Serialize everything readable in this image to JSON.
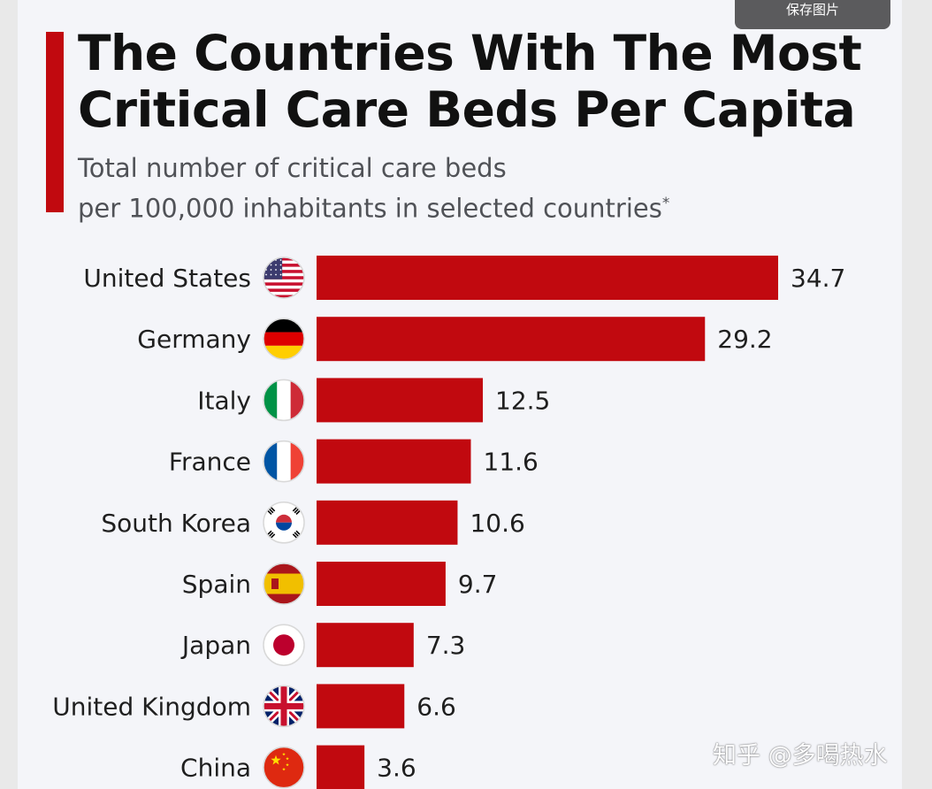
{
  "toolbar": {
    "save_image_label": "保存图片"
  },
  "title": {
    "line1": "The Countries With The Most",
    "line2": "Critical Care Beds Per Capita"
  },
  "subtitle": {
    "line1": "Total number of critical care beds",
    "line2": "per 100,000 inhabitants in selected countries",
    "footnote_marker": "*"
  },
  "colors": {
    "bar": "#c1090f",
    "accent": "#c1090f",
    "label": "#1f1f1f"
  },
  "chart_data": {
    "type": "bar",
    "orientation": "horizontal",
    "categories": [
      "United States",
      "Germany",
      "Italy",
      "France",
      "South Korea",
      "Spain",
      "Japan",
      "United Kingdom",
      "China"
    ],
    "values": [
      34.7,
      29.2,
      12.5,
      11.6,
      10.6,
      9.7,
      7.3,
      6.6,
      3.6
    ],
    "value_labels": [
      "34.7",
      "29.2",
      "12.5",
      "11.6",
      "10.6",
      "9.7",
      "7.3",
      "6.6",
      "3.6"
    ],
    "flags": [
      "us-flag-icon",
      "germany-flag-icon",
      "italy-flag-icon",
      "france-flag-icon",
      "south-korea-flag-icon",
      "spain-flag-icon",
      "japan-flag-icon",
      "uk-flag-icon",
      "china-flag-icon"
    ],
    "title": "The Countries With The Most Critical Care Beds Per Capita",
    "xlabel": "",
    "ylabel": "",
    "xlim": [
      0,
      34.7
    ],
    "grid": false
  },
  "watermark": "知乎 @多喝热水"
}
